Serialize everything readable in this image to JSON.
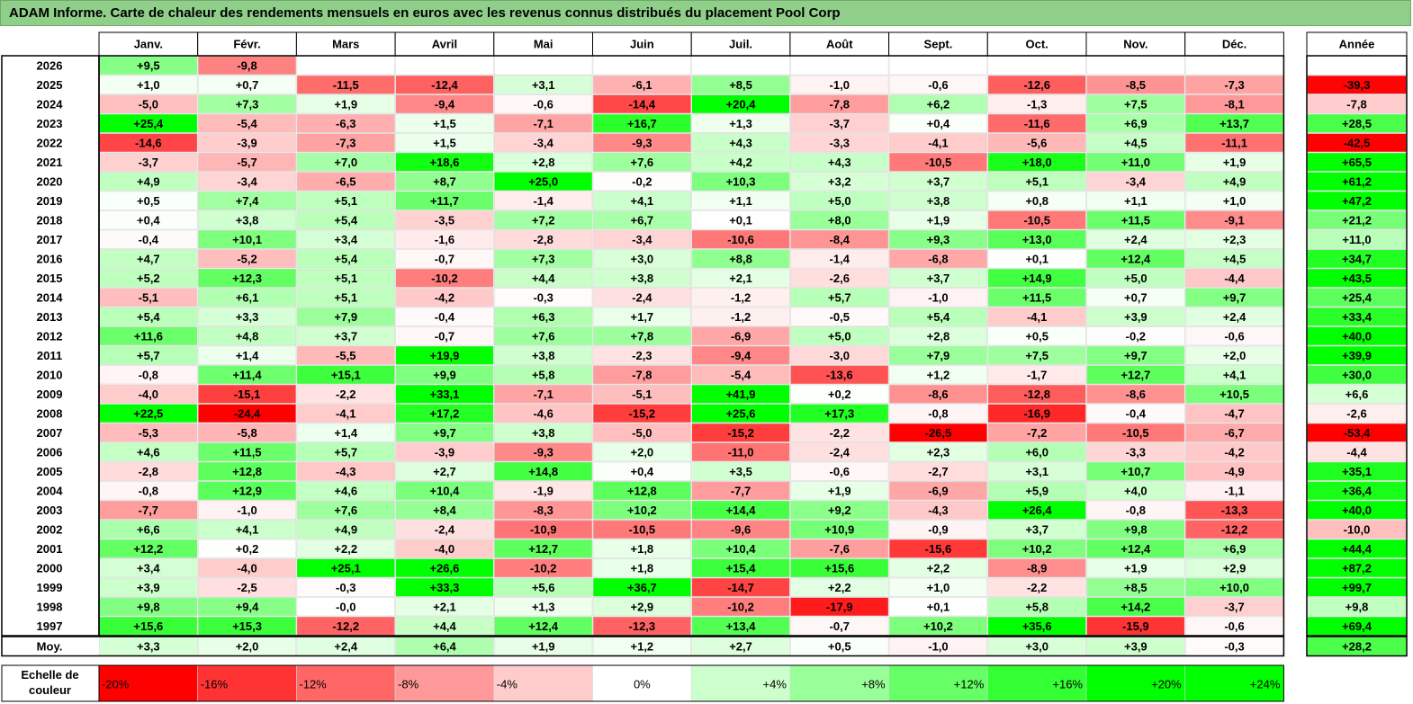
{
  "chart_data": {
    "type": "heatmap",
    "title": "ADAM Informe. Carte de chaleur des rendements mensuels en euros avec les revenus connus distribués du placement Pool Corp",
    "columns": [
      "Janv.",
      "Févr.",
      "Mars",
      "Avril",
      "Mai",
      "Juin",
      "Juil.",
      "Août",
      "Sept.",
      "Oct.",
      "Nov.",
      "Déc."
    ],
    "year_header": "Année",
    "rows": [
      {
        "label": "2026",
        "values": [
          "+9,5",
          "-9,8",
          "",
          "",
          "",
          "",
          "",
          "",
          "",
          "",
          "",
          ""
        ],
        "year": ""
      },
      {
        "label": "2025",
        "values": [
          "+1,0",
          "+0,7",
          "-11,5",
          "-12,4",
          "+3,1",
          "-6,1",
          "+8,5",
          "-1,0",
          "-0,6",
          "-12,6",
          "-8,5",
          "-7,3"
        ],
        "year": "-39,3"
      },
      {
        "label": "2024",
        "values": [
          "-5,0",
          "+7,3",
          "+1,9",
          "-9,4",
          "-0,6",
          "-14,4",
          "+20,4",
          "-7,8",
          "+6,2",
          "-1,3",
          "+7,5",
          "-8,1"
        ],
        "year": "-7,8"
      },
      {
        "label": "2023",
        "values": [
          "+25,4",
          "-5,4",
          "-6,3",
          "+1,5",
          "-7,1",
          "+16,7",
          "+1,3",
          "-3,7",
          "+0,4",
          "-11,6",
          "+6,9",
          "+13,7"
        ],
        "year": "+28,5"
      },
      {
        "label": "2022",
        "values": [
          "-14,6",
          "-3,9",
          "-7,3",
          "+1,5",
          "-3,4",
          "-9,3",
          "+4,3",
          "-3,3",
          "-4,1",
          "-5,6",
          "+4,5",
          "-11,1"
        ],
        "year": "-42,5"
      },
      {
        "label": "2021",
        "values": [
          "-3,7",
          "-5,7",
          "+7,0",
          "+18,6",
          "+2,8",
          "+7,6",
          "+4,2",
          "+4,3",
          "-10,5",
          "+18,0",
          "+11,0",
          "+1,9"
        ],
        "year": "+65,5"
      },
      {
        "label": "2020",
        "values": [
          "+4,9",
          "-3,4",
          "-6,5",
          "+8,7",
          "+25,0",
          "-0,2",
          "+10,3",
          "+3,2",
          "+3,7",
          "+5,1",
          "-3,4",
          "+4,9"
        ],
        "year": "+61,2"
      },
      {
        "label": "2019",
        "values": [
          "+0,5",
          "+7,4",
          "+5,1",
          "+11,7",
          "-1,4",
          "+4,1",
          "+1,1",
          "+5,0",
          "+3,8",
          "+0,8",
          "+1,1",
          "+1,0"
        ],
        "year": "+47,2"
      },
      {
        "label": "2018",
        "values": [
          "+0,4",
          "+3,8",
          "+5,4",
          "-3,5",
          "+7,2",
          "+6,7",
          "+0,1",
          "+8,0",
          "+1,9",
          "-10,5",
          "+11,5",
          "-9,1"
        ],
        "year": "+21,2"
      },
      {
        "label": "2017",
        "values": [
          "-0,4",
          "+10,1",
          "+3,4",
          "-1,6",
          "-2,8",
          "-3,4",
          "-10,6",
          "-8,4",
          "+9,3",
          "+13,0",
          "+2,4",
          "+2,3"
        ],
        "year": "+11,0"
      },
      {
        "label": "2016",
        "values": [
          "+4,7",
          "-5,2",
          "+5,4",
          "-0,7",
          "+7,3",
          "+3,0",
          "+8,8",
          "-1,4",
          "-6,8",
          "+0,1",
          "+12,4",
          "+4,5"
        ],
        "year": "+34,7"
      },
      {
        "label": "2015",
        "values": [
          "+5,2",
          "+12,3",
          "+5,1",
          "-10,2",
          "+4,4",
          "+3,8",
          "+2,1",
          "-2,6",
          "+3,7",
          "+14,9",
          "+5,0",
          "-4,4"
        ],
        "year": "+43,5"
      },
      {
        "label": "2014",
        "values": [
          "-5,1",
          "+6,1",
          "+5,1",
          "-4,2",
          "-0,3",
          "-2,4",
          "-1,2",
          "+5,7",
          "-1,0",
          "+11,5",
          "+0,7",
          "+9,7"
        ],
        "year": "+25,4"
      },
      {
        "label": "2013",
        "values": [
          "+5,4",
          "+3,3",
          "+7,9",
          "-0,4",
          "+6,3",
          "+1,7",
          "-1,2",
          "-0,5",
          "+5,4",
          "-4,1",
          "+3,9",
          "+2,4"
        ],
        "year": "+33,4"
      },
      {
        "label": "2012",
        "values": [
          "+11,6",
          "+4,8",
          "+3,7",
          "-0,7",
          "+7,6",
          "+7,8",
          "-6,9",
          "+5,0",
          "+2,8",
          "+0,5",
          "-0,2",
          "-0,6"
        ],
        "year": "+40,0"
      },
      {
        "label": "2011",
        "values": [
          "+5,7",
          "+1,4",
          "-5,5",
          "+19,9",
          "+3,8",
          "-2,3",
          "-9,4",
          "-3,0",
          "+7,9",
          "+7,5",
          "+9,7",
          "+2,0"
        ],
        "year": "+39,9"
      },
      {
        "label": "2010",
        "values": [
          "-0,8",
          "+11,4",
          "+15,1",
          "+9,9",
          "+5,8",
          "-7,8",
          "-5,4",
          "-13,6",
          "+1,2",
          "-1,7",
          "+12,7",
          "+4,1"
        ],
        "year": "+30,0"
      },
      {
        "label": "2009",
        "values": [
          "-4,0",
          "-15,1",
          "-2,2",
          "+33,1",
          "-7,1",
          "-5,1",
          "+41,9",
          "+0,2",
          "-8,6",
          "-12,8",
          "-8,6",
          "+10,5"
        ],
        "year": "+6,6"
      },
      {
        "label": "2008",
        "values": [
          "+22,5",
          "-24,4",
          "-4,1",
          "+17,2",
          "-4,6",
          "-15,2",
          "+25,6",
          "+17,3",
          "-0,8",
          "-16,9",
          "-0,4",
          "-4,7"
        ],
        "year": "-2,6"
      },
      {
        "label": "2007",
        "values": [
          "-5,3",
          "-5,8",
          "+1,4",
          "+9,7",
          "+3,8",
          "-5,0",
          "-15,2",
          "-2,2",
          "-26,5",
          "-7,2",
          "-10,5",
          "-6,7"
        ],
        "year": "-53,4"
      },
      {
        "label": "2006",
        "values": [
          "+4,6",
          "+11,5",
          "+5,7",
          "-3,9",
          "-9,3",
          "+2,0",
          "-11,0",
          "-2,4",
          "+2,3",
          "+6,0",
          "-3,3",
          "-4,2"
        ],
        "year": "-4,4"
      },
      {
        "label": "2005",
        "values": [
          "-2,8",
          "+12,8",
          "-4,3",
          "+2,7",
          "+14,8",
          "+0,4",
          "+3,5",
          "-0,6",
          "-2,7",
          "+3,1",
          "+10,7",
          "-4,9"
        ],
        "year": "+35,1"
      },
      {
        "label": "2004",
        "values": [
          "-0,8",
          "+12,9",
          "+4,6",
          "+10,4",
          "-1,9",
          "+12,8",
          "-7,7",
          "+1,9",
          "-6,9",
          "+5,9",
          "+4,0",
          "-1,1"
        ],
        "year": "+36,4"
      },
      {
        "label": "2003",
        "values": [
          "-7,7",
          "-1,0",
          "+7,6",
          "+8,4",
          "-8,3",
          "+10,2",
          "+14,4",
          "+9,2",
          "-4,3",
          "+26,4",
          "-0,8",
          "-13,3"
        ],
        "year": "+40,0"
      },
      {
        "label": "2002",
        "values": [
          "+6,6",
          "+4,1",
          "+4,9",
          "-2,4",
          "-10,9",
          "-10,5",
          "-9,6",
          "+10,9",
          "-0,9",
          "+3,7",
          "+9,8",
          "-12,2"
        ],
        "year": "-10,0"
      },
      {
        "label": "2001",
        "values": [
          "+12,2",
          "+0,2",
          "+2,2",
          "-4,0",
          "+12,7",
          "+1,8",
          "+10,4",
          "-7,6",
          "-15,6",
          "+10,2",
          "+12,4",
          "+6,9"
        ],
        "year": "+44,4"
      },
      {
        "label": "2000",
        "values": [
          "+3,4",
          "-4,0",
          "+25,1",
          "+26,6",
          "-10,2",
          "+1,8",
          "+15,4",
          "+15,6",
          "+2,2",
          "-8,9",
          "+1,9",
          "+2,9"
        ],
        "year": "+87,2"
      },
      {
        "label": "1999",
        "values": [
          "+3,9",
          "-2,5",
          "-0,3",
          "+33,3",
          "+5,6",
          "+36,7",
          "-14,7",
          "+2,2",
          "+1,0",
          "-2,2",
          "+8,5",
          "+10,0"
        ],
        "year": "+99,7"
      },
      {
        "label": "1998",
        "values": [
          "+9,8",
          "+9,4",
          "-0,0",
          "+2,1",
          "+1,3",
          "+2,9",
          "-10,2",
          "-17,9",
          "+0,1",
          "+5,8",
          "+14,2",
          "-3,7"
        ],
        "year": "+9,8"
      },
      {
        "label": "1997",
        "values": [
          "+15,6",
          "+15,3",
          "-12,2",
          "+4,4",
          "+12,4",
          "-12,3",
          "+13,4",
          "-0,7",
          "+10,2",
          "+35,6",
          "-15,9",
          "-0,6"
        ],
        "year": "+69,4"
      }
    ],
    "average": {
      "label": "Moy.",
      "values": [
        "+3,3",
        "+2,0",
        "+2,4",
        "+6,4",
        "+1,9",
        "+1,2",
        "+2,7",
        "+0,5",
        "-1,0",
        "+3,0",
        "+3,9",
        "-0,3"
      ],
      "year": "+28,2"
    },
    "legend": {
      "label": "Echelle de couleur",
      "steps": [
        "-20%",
        "-16%",
        "-12%",
        "-8%",
        "-4%",
        "0%",
        "+4%",
        "+8%",
        "+12%",
        "+16%",
        "+20%",
        "+24%"
      ],
      "values": [
        -20,
        -16,
        -12,
        -8,
        -4,
        0,
        4,
        8,
        12,
        16,
        20,
        24
      ]
    },
    "colors": {
      "negative": "#ff0000",
      "neutral": "#ffffff",
      "positive": "#00ff00",
      "title_bar": "#8fcf8a"
    }
  }
}
